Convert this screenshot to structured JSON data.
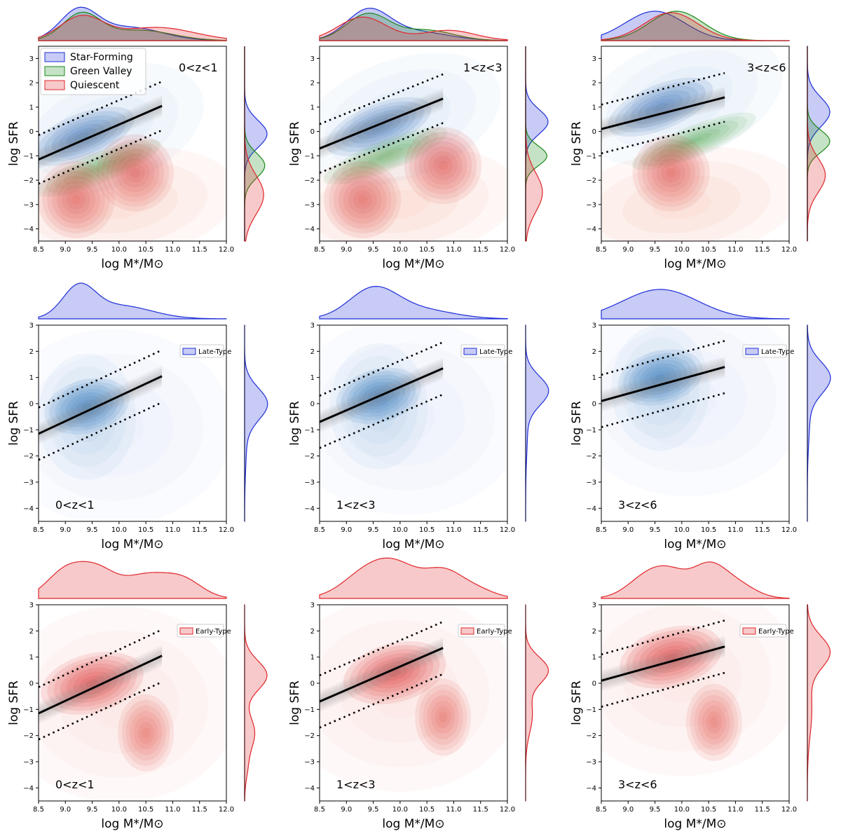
{
  "colors": {
    "sf": "#1f2fd8",
    "gv": "#1a8a1a",
    "q": "#e0262a",
    "late_fill": "#2f6fb8",
    "early_fill": "#d8282a"
  },
  "chart_data": {
    "type": "contour-grid",
    "rows": 3,
    "cols": 3,
    "xlabel": "log M*/M⊙",
    "ylabel": "log SFR",
    "xlim": [
      8.5,
      12.0
    ],
    "ylim": [
      -4.5,
      3.5
    ],
    "x_ticks": [
      "8.5",
      "9.0",
      "9.5",
      "10.0",
      "10.5",
      "11.0",
      "11.5",
      "12.0"
    ],
    "y_ticks_row1": [
      "-4",
      "-3",
      "-2",
      "-1",
      "0",
      "1",
      "2",
      "3"
    ],
    "y_ticks_other": [
      "-4",
      "-3",
      "-2",
      "-1",
      "0",
      "1",
      "2",
      "3"
    ],
    "redshift_bins": [
      "0<z<1",
      "1<z<3",
      "3<z<6"
    ],
    "main_sequence_fits": [
      {
        "bin": "0<z<1",
        "x": [
          8.5,
          10.8
        ],
        "y": [
          -1.15,
          1.05
        ],
        "scatter": 1.0
      },
      {
        "bin": "1<z<3",
        "x": [
          8.5,
          10.8
        ],
        "y": [
          -0.7,
          1.35
        ],
        "scatter": 1.0
      },
      {
        "bin": "3<z<6",
        "x": [
          8.5,
          10.8
        ],
        "y": [
          0.1,
          1.4
        ],
        "scatter": 1.0
      }
    ],
    "row_legends": [
      [
        "Star-Forming",
        "Green Valley",
        "Quiescent"
      ],
      [
        "Late-Type"
      ],
      [
        "Early-Type"
      ]
    ],
    "density_peaks": {
      "row1": [
        [
          {
            "class": "SF",
            "x": 9.3,
            "y": -0.2
          },
          {
            "class": "GV",
            "x": 9.3,
            "y": -1.5
          },
          {
            "class": "Q",
            "x": 9.2,
            "y": -2.8
          },
          {
            "class": "Q",
            "x": 10.3,
            "y": -1.7
          }
        ],
        [
          {
            "class": "SF",
            "x": 9.6,
            "y": 0.2
          },
          {
            "class": "GV",
            "x": 9.4,
            "y": -1.0
          },
          {
            "class": "Q",
            "x": 9.3,
            "y": -2.8
          },
          {
            "class": "Q",
            "x": 10.8,
            "y": -1.4
          }
        ],
        [
          {
            "class": "SF",
            "x": 9.6,
            "y": 1.0
          },
          {
            "class": "GV",
            "x": 9.9,
            "y": -0.4
          },
          {
            "class": "Q",
            "x": 9.8,
            "y": -1.7
          }
        ]
      ],
      "row2": [
        {
          "x": 9.4,
          "y": -0.1
        },
        {
          "x": 9.6,
          "y": 0.3
        },
        {
          "x": 9.6,
          "y": 1.0
        }
      ],
      "row3": [
        [
          {
            "x": 9.5,
            "y": 0.0
          },
          {
            "x": 10.5,
            "y": -1.9
          }
        ],
        [
          {
            "x": 9.9,
            "y": 0.4
          },
          {
            "x": 10.8,
            "y": -1.3
          }
        ],
        [
          {
            "x": 9.8,
            "y": 1.0
          },
          {
            "x": 10.6,
            "y": -1.5
          }
        ]
      ]
    }
  }
}
